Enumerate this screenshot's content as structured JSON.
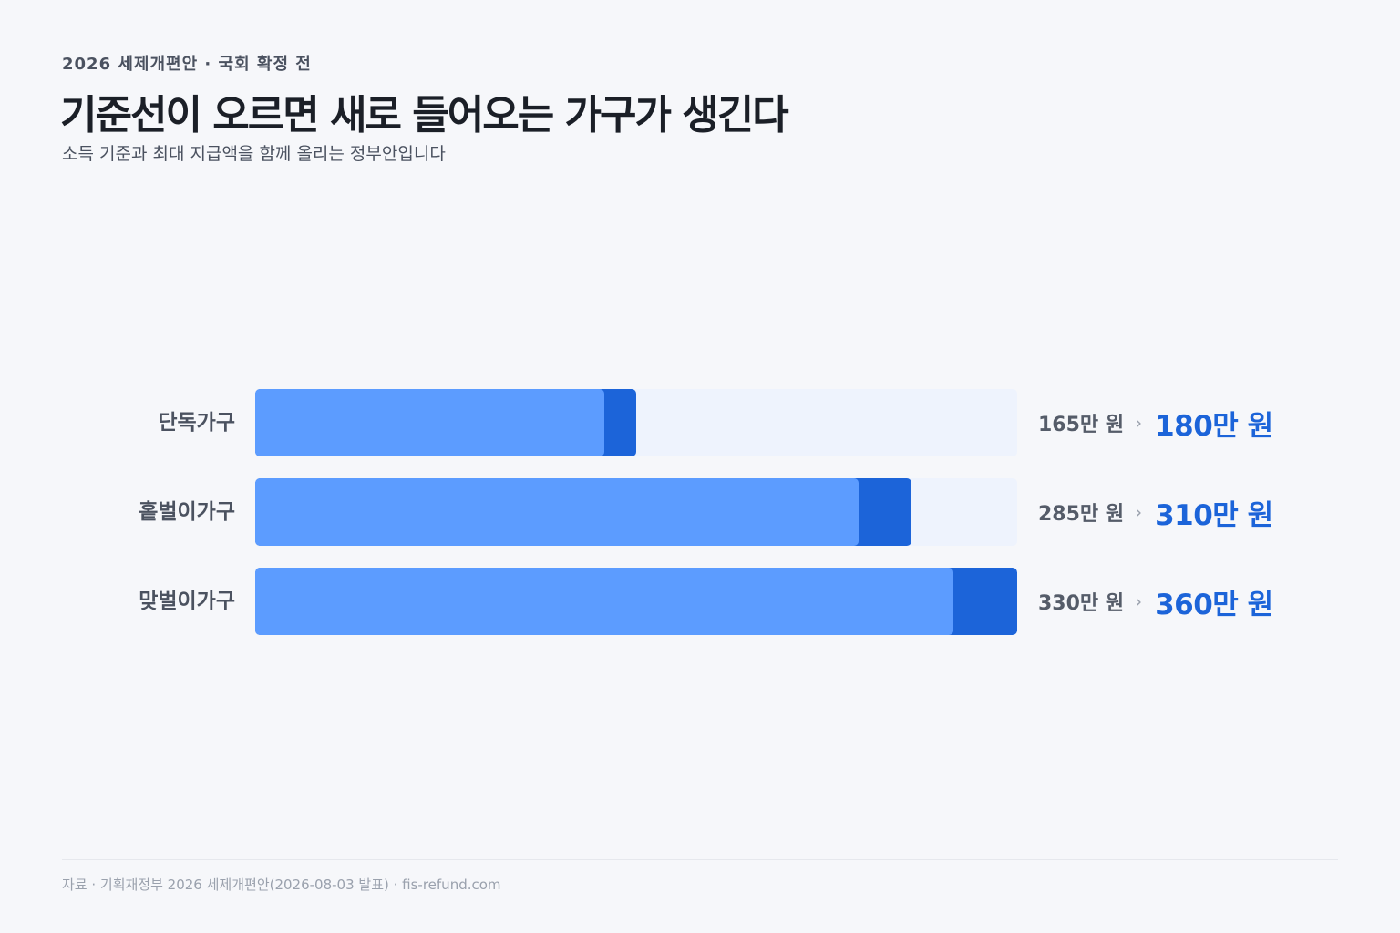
{
  "header": {
    "eyebrow": "2026 세제개편안 · 국회 확정 전",
    "title": "기준선이 오르면 새로 들어오는 가구가 생긴다",
    "subtitle": "소득 기준과 최대 지급액을 함께 올리는 정부안입니다"
  },
  "chart_data": {
    "type": "bar",
    "orientation": "horizontal",
    "categories": [
      "단독가구",
      "홑벌이가구",
      "맞벌이가구"
    ],
    "series": [
      {
        "values": [
          165,
          285,
          330
        ],
        "color": "#5c9cff"
      },
      {
        "values": [
          180,
          310,
          360
        ],
        "color": "#1c64d9"
      }
    ],
    "old_labels": [
      "165만 원",
      "285만 원",
      "330만 원"
    ],
    "new_labels": [
      "180만 원",
      "310만 원",
      "360만 원"
    ],
    "arrow": "›",
    "xlim": [
      0,
      360
    ],
    "grid": false
  },
  "footer": {
    "source": "자료 · 기획재정부 2026 세제개편안(2026-08-03 발표) · fis-refund.com"
  },
  "colors": {
    "track": "#eef3fd",
    "accent": "#1c64d9",
    "old": "#5c9cff"
  }
}
